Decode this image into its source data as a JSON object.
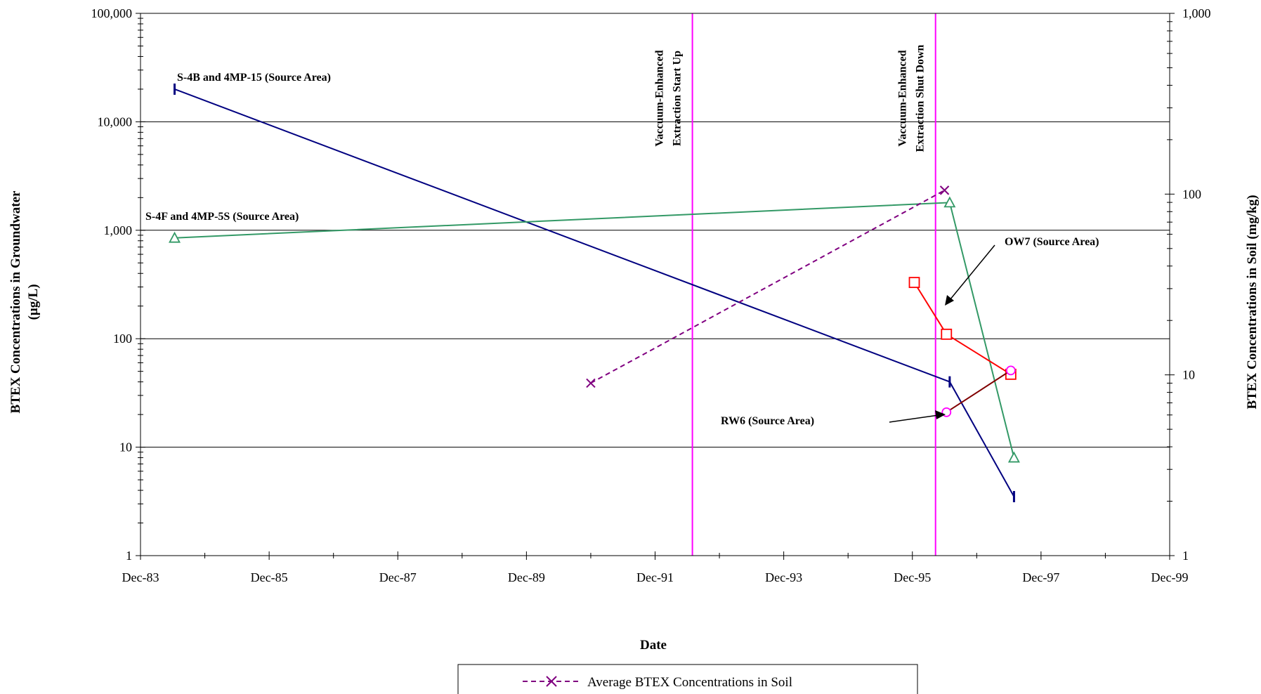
{
  "chart_data": {
    "type": "line",
    "xlabel": "Date",
    "ylabel_left_line1": "BTEX Concentrations in Groundwater",
    "ylabel_left_line2": "(µg/L)",
    "ylabel_right": "BTEX Concentrations in Soil (mg/kg)",
    "x_ticks": [
      {
        "label": "Dec-83",
        "t": 1983.92
      },
      {
        "label": "Dec-85",
        "t": 1985.92
      },
      {
        "label": "Dec-87",
        "t": 1987.92
      },
      {
        "label": "Dec-89",
        "t": 1989.92
      },
      {
        "label": "Dec-91",
        "t": 1991.92
      },
      {
        "label": "Dec-93",
        "t": 1993.92
      },
      {
        "label": "Dec-95",
        "t": 1995.92
      },
      {
        "label": "Dec-97",
        "t": 1997.92
      },
      {
        "label": "Dec-99",
        "t": 1999.92
      }
    ],
    "xlim": [
      1983.92,
      1999.92
    ],
    "y_left": {
      "scale": "log",
      "lim": [
        1,
        100000
      ],
      "ticks": [
        "1",
        "10",
        "100",
        "1,000",
        "10,000",
        "100,000"
      ]
    },
    "y_right": {
      "scale": "log",
      "lim": [
        1,
        1000
      ],
      "ticks": [
        "1",
        "10",
        "100",
        "1,000"
      ]
    },
    "grid": true,
    "series": [
      {
        "key": "s4b",
        "axis": "left",
        "color": "#000080",
        "marker": "dash",
        "dash": false,
        "x": [
          1984.45,
          1996.5,
          1997.5
        ],
        "y": [
          20000,
          40,
          3.5
        ]
      },
      {
        "key": "s4f",
        "axis": "left",
        "color": "#339966",
        "marker": "triangle",
        "dash": false,
        "x": [
          1984.45,
          1996.5,
          1997.5
        ],
        "y": [
          850,
          1800,
          8
        ]
      },
      {
        "key": "ow7",
        "axis": "left",
        "color": "#ff0000",
        "marker": "square",
        "dash": false,
        "x": [
          1995.95,
          1996.45,
          1997.45
        ],
        "y": [
          330,
          110,
          47
        ]
      },
      {
        "key": "rw6",
        "axis": "left",
        "color": "#800000",
        "marker": "circle",
        "marker_color": "#ff00ff",
        "dash": false,
        "x": [
          1996.45,
          1997.45
        ],
        "y": [
          21,
          51
        ]
      },
      {
        "key": "soil",
        "axis": "right",
        "color": "#800080",
        "marker": "x",
        "dash": true,
        "name": "Average BTEX Concentrations in Soil",
        "x": [
          1990.92,
          1996.42
        ],
        "y": [
          9,
          105
        ]
      }
    ],
    "vlines": [
      {
        "t": 1992.5,
        "color": "#ff00ff",
        "label_line1": "Vaccuum-Enhanced",
        "label_line2": "Extraction Start Up"
      },
      {
        "t": 1996.28,
        "color": "#ff00ff",
        "label_line1": "Vaccuum-Enhanced",
        "label_line2": "Extraction Shut Down"
      }
    ],
    "annotations": [
      {
        "text": "S-4B and 4MP-15 (Source Area)"
      },
      {
        "text": "S-4F and 4MP-5S (Source Area)"
      },
      {
        "text": "OW7 (Source Area)"
      },
      {
        "text": "RW6 (Source Area)"
      }
    ],
    "legend": {
      "placement": "bottom-center",
      "entries": [
        "Average BTEX Concentrations in Soil"
      ]
    }
  }
}
